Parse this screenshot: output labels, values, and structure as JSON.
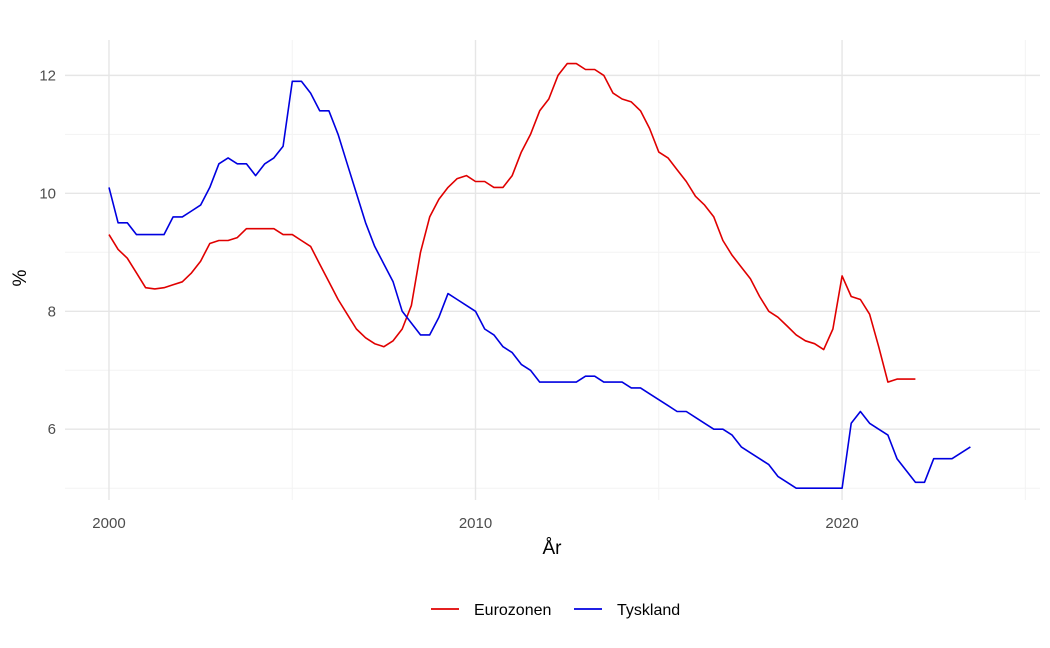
{
  "chart_data": {
    "type": "line",
    "xlabel": "År",
    "ylabel": "%",
    "xlim": [
      1998.8,
      2025.4
    ],
    "ylim": [
      4.8,
      12.6
    ],
    "x_major_ticks": [
      2000,
      2010,
      2020
    ],
    "x_major_tick_labels": [
      "2000",
      "2010",
      "2020"
    ],
    "x_minor_ticks": [
      2005,
      2015,
      2025
    ],
    "y_major_ticks": [
      6,
      8,
      10,
      12
    ],
    "y_major_tick_labels": [
      "6",
      "8",
      "10",
      "12"
    ],
    "y_minor_ticks": [
      5,
      7,
      9,
      11
    ],
    "grid": true,
    "legend_position": "bottom",
    "series": [
      {
        "name": "Eurozonen",
        "color": "#e00000",
        "x": [
          2000.0,
          2000.25,
          2000.5,
          2000.75,
          2001.0,
          2001.25,
          2001.5,
          2001.75,
          2002.0,
          2002.25,
          2002.5,
          2002.75,
          2003.0,
          2003.25,
          2003.5,
          2003.75,
          2004.0,
          2004.25,
          2004.5,
          2004.75,
          2005.0,
          2005.25,
          2005.5,
          2005.75,
          2006.0,
          2006.25,
          2006.5,
          2006.75,
          2007.0,
          2007.25,
          2007.5,
          2007.75,
          2008.0,
          2008.25,
          2008.5,
          2008.75,
          2009.0,
          2009.25,
          2009.5,
          2009.75,
          2010.0,
          2010.25,
          2010.5,
          2010.75,
          2011.0,
          2011.25,
          2011.5,
          2011.75,
          2012.0,
          2012.25,
          2012.5,
          2012.75,
          2013.0,
          2013.25,
          2013.5,
          2013.75,
          2014.0,
          2014.25,
          2014.5,
          2014.75,
          2015.0,
          2015.25,
          2015.5,
          2015.75,
          2016.0,
          2016.25,
          2016.5,
          2016.75,
          2017.0,
          2017.25,
          2017.5,
          2017.75,
          2018.0,
          2018.25,
          2018.5,
          2018.75,
          2019.0,
          2019.25,
          2019.5,
          2019.75,
          2020.0,
          2020.25,
          2020.5,
          2020.75,
          2021.0,
          2021.25,
          2021.5,
          2021.75,
          2022.0
        ],
        "values": [
          9.3,
          9.05,
          8.9,
          8.65,
          8.4,
          8.38,
          8.4,
          8.45,
          8.5,
          8.65,
          8.85,
          9.15,
          9.2,
          9.2,
          9.25,
          9.4,
          9.4,
          9.4,
          9.4,
          9.3,
          9.3,
          9.2,
          9.1,
          8.8,
          8.5,
          8.2,
          7.95,
          7.7,
          7.55,
          7.45,
          7.4,
          7.5,
          7.7,
          8.1,
          9.0,
          9.6,
          9.9,
          10.1,
          10.25,
          10.3,
          10.2,
          10.2,
          10.1,
          10.1,
          10.3,
          10.7,
          11.0,
          11.4,
          11.6,
          12.0,
          12.2,
          12.2,
          12.1,
          12.1,
          12.0,
          11.7,
          11.6,
          11.55,
          11.4,
          11.1,
          10.7,
          10.6,
          10.4,
          10.2,
          9.95,
          9.8,
          9.6,
          9.2,
          8.95,
          8.75,
          8.55,
          8.25,
          8.0,
          7.9,
          7.75,
          7.6,
          7.5,
          7.45,
          7.35,
          7.7,
          8.6,
          8.25,
          8.2,
          7.95,
          7.4,
          6.8,
          6.85,
          6.85,
          6.85
        ]
      },
      {
        "name": "Tyskland",
        "color": "#0000e0",
        "x": [
          2000.0,
          2000.25,
          2000.5,
          2000.75,
          2001.0,
          2001.25,
          2001.5,
          2001.75,
          2002.0,
          2002.25,
          2002.5,
          2002.75,
          2003.0,
          2003.25,
          2003.5,
          2003.75,
          2004.0,
          2004.25,
          2004.5,
          2004.75,
          2005.0,
          2005.25,
          2005.5,
          2005.75,
          2006.0,
          2006.25,
          2006.5,
          2006.75,
          2007.0,
          2007.25,
          2007.5,
          2007.75,
          2008.0,
          2008.25,
          2008.5,
          2008.75,
          2009.0,
          2009.25,
          2009.5,
          2009.75,
          2010.0,
          2010.25,
          2010.5,
          2010.75,
          2011.0,
          2011.25,
          2011.5,
          2011.75,
          2012.0,
          2012.25,
          2012.5,
          2012.75,
          2013.0,
          2013.25,
          2013.5,
          2013.75,
          2014.0,
          2014.25,
          2014.5,
          2014.75,
          2015.0,
          2015.25,
          2015.5,
          2015.75,
          2016.0,
          2016.25,
          2016.5,
          2016.75,
          2017.0,
          2017.25,
          2017.5,
          2017.75,
          2018.0,
          2018.25,
          2018.5,
          2018.75,
          2019.0,
          2019.25,
          2019.5,
          2019.75,
          2020.0,
          2020.25,
          2020.5,
          2020.75,
          2021.0,
          2021.25,
          2021.5,
          2021.75,
          2022.0,
          2022.25,
          2022.5,
          2022.75,
          2023.0,
          2023.25,
          2023.5
        ],
        "values": [
          10.1,
          9.5,
          9.5,
          9.3,
          9.3,
          9.3,
          9.3,
          9.6,
          9.6,
          9.7,
          9.8,
          10.1,
          10.5,
          10.6,
          10.5,
          10.5,
          10.3,
          10.5,
          10.6,
          10.8,
          11.9,
          11.9,
          11.7,
          11.4,
          11.4,
          11.0,
          10.5,
          10.0,
          9.5,
          9.1,
          8.8,
          8.5,
          8.0,
          7.8,
          7.6,
          7.6,
          7.9,
          8.3,
          8.2,
          8.1,
          8.0,
          7.7,
          7.6,
          7.4,
          7.3,
          7.1,
          7.0,
          6.8,
          6.8,
          6.8,
          6.8,
          6.8,
          6.9,
          6.9,
          6.8,
          6.8,
          6.8,
          6.7,
          6.7,
          6.6,
          6.5,
          6.4,
          6.3,
          6.3,
          6.2,
          6.1,
          6.0,
          6.0,
          5.9,
          5.7,
          5.6,
          5.5,
          5.4,
          5.2,
          5.1,
          5.0,
          5.0,
          5.0,
          5.0,
          5.0,
          5.0,
          6.1,
          6.3,
          6.1,
          6.0,
          5.9,
          5.5,
          5.3,
          5.1,
          5.1,
          5.5,
          5.5,
          5.5,
          5.6,
          5.7
        ]
      }
    ]
  }
}
